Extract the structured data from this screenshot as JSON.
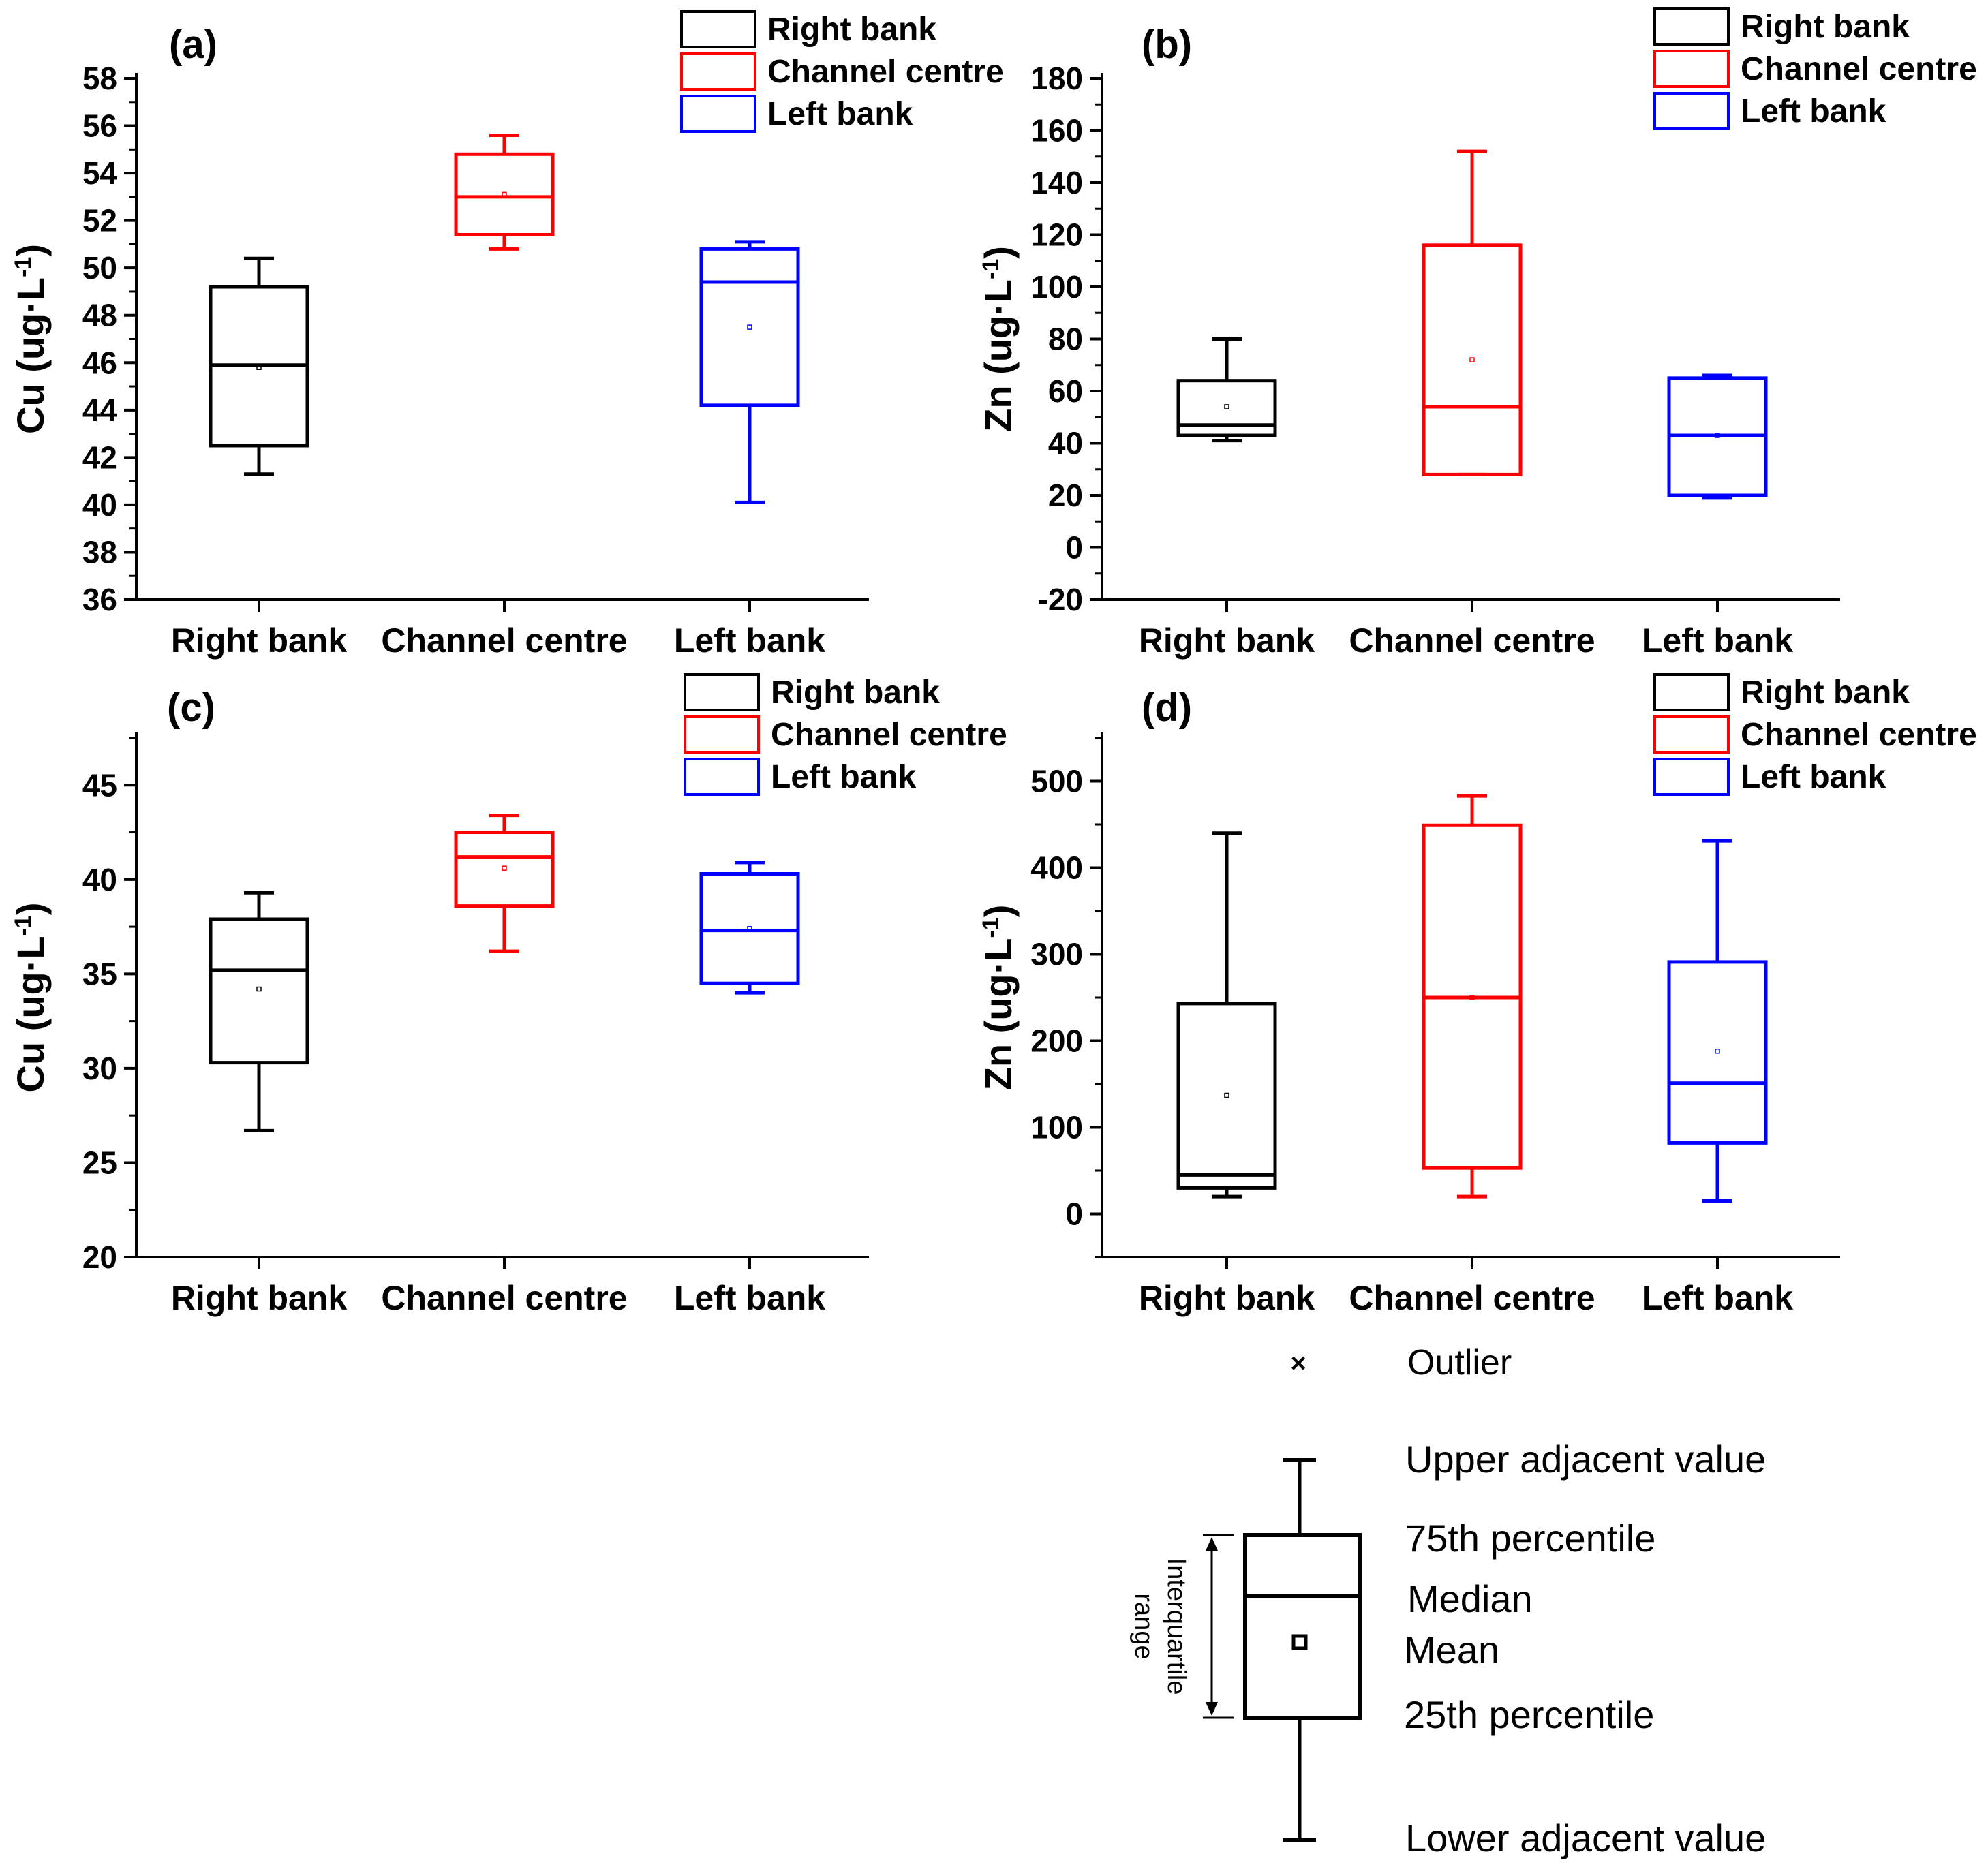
{
  "categories": [
    "Right bank",
    "Channel centre",
    "Left bank"
  ],
  "series_colors": {
    "Right bank": "#000000",
    "Channel centre": "#ff0000",
    "Left bank": "#0000ff"
  },
  "chart_data": [
    {
      "type": "box",
      "panel": "(a)",
      "ylabel": "Cu (ug·L",
      "ylabel_sup": "-1",
      "ylabel_close": ")",
      "ylim": [
        36,
        58
      ],
      "yticks": [
        36,
        38,
        40,
        42,
        44,
        46,
        48,
        50,
        52,
        54,
        56,
        58
      ],
      "ytick_labels": [
        "36",
        "38",
        "40",
        "42",
        "44",
        "46",
        "48",
        "50",
        "52",
        "54",
        "56",
        "58"
      ],
      "legend": [
        "Right bank",
        "Channel centre",
        "Left bank"
      ],
      "boxes": [
        {
          "category": "Right bank",
          "whisker_low": 41.3,
          "q1": 42.5,
          "median": 45.9,
          "q3": 49.2,
          "whisker_high": 50.4,
          "mean": 45.8
        },
        {
          "category": "Channel centre",
          "whisker_low": 50.8,
          "q1": 51.4,
          "median": 53.0,
          "q3": 54.8,
          "whisker_high": 55.6,
          "mean": 53.1
        },
        {
          "category": "Left bank",
          "whisker_low": 40.1,
          "q1": 44.2,
          "median": 49.4,
          "q3": 50.8,
          "whisker_high": 51.1,
          "mean": 47.5
        }
      ]
    },
    {
      "type": "box",
      "panel": "(b)",
      "ylabel": "Zn (ug·L",
      "ylabel_sup": "-1",
      "ylabel_close": ")",
      "ylim": [
        -20,
        180
      ],
      "yticks": [
        -20,
        0,
        20,
        40,
        60,
        80,
        100,
        120,
        140,
        160,
        180
      ],
      "ytick_labels": [
        "-20",
        "0",
        "20",
        "40",
        "60",
        "80",
        "100",
        "120",
        "140",
        "160",
        "180"
      ],
      "legend": [
        "Right bank",
        "Channel centre",
        "Left bank"
      ],
      "boxes": [
        {
          "category": "Right bank",
          "whisker_low": 41,
          "q1": 43,
          "median": 47,
          "q3": 64,
          "whisker_high": 80,
          "mean": 54
        },
        {
          "category": "Channel centre",
          "whisker_low": 28,
          "q1": 28,
          "median": 54,
          "q3": 116,
          "whisker_high": 152,
          "mean": 72
        },
        {
          "category": "Left bank",
          "whisker_low": 19,
          "q1": 20,
          "median": 43,
          "q3": 65,
          "whisker_high": 66,
          "mean": 43
        }
      ]
    },
    {
      "type": "box",
      "panel": "(c)",
      "ylabel": "Cu (ug·L",
      "ylabel_sup": "-1",
      "ylabel_close": ")",
      "ylim": [
        20,
        47.5
      ],
      "yticks": [
        20,
        25,
        30,
        35,
        40,
        45
      ],
      "ytick_labels": [
        "20",
        "25",
        "30",
        "35",
        "40",
        "45"
      ],
      "legend": [
        "Right bank",
        "Channel centre",
        "Left bank"
      ],
      "boxes": [
        {
          "category": "Right bank",
          "whisker_low": 26.7,
          "q1": 30.3,
          "median": 35.2,
          "q3": 37.9,
          "whisker_high": 39.3,
          "mean": 34.2
        },
        {
          "category": "Channel centre",
          "whisker_low": 36.2,
          "q1": 38.6,
          "median": 41.2,
          "q3": 42.5,
          "whisker_high": 43.4,
          "mean": 40.6
        },
        {
          "category": "Left bank",
          "whisker_low": 34.0,
          "q1": 34.5,
          "median": 37.3,
          "q3": 40.3,
          "whisker_high": 40.9,
          "mean": 37.4
        }
      ]
    },
    {
      "type": "box",
      "panel": "(d)",
      "ylabel": "Zn (ug·L",
      "ylabel_sup": "-1",
      "ylabel_close": ")",
      "ylim": [
        -50,
        550
      ],
      "yticks": [
        0,
        100,
        200,
        300,
        400,
        500
      ],
      "ytick_labels": [
        "0",
        "100",
        "200",
        "300",
        "400",
        "500"
      ],
      "legend": [
        "Right bank",
        "Channel centre",
        "Left bank"
      ],
      "boxes": [
        {
          "category": "Right bank",
          "whisker_low": 20,
          "q1": 30,
          "median": 45,
          "q3": 243,
          "whisker_high": 440,
          "mean": 137
        },
        {
          "category": "Channel centre",
          "whisker_low": 20,
          "q1": 53,
          "median": 250,
          "q3": 449,
          "whisker_high": 483,
          "mean": 250
        },
        {
          "category": "Left bank",
          "whisker_low": 15,
          "q1": 82,
          "median": 151,
          "q3": 291,
          "whisker_high": 431,
          "mean": 188
        }
      ]
    }
  ],
  "key": {
    "outlier_symbol": "×",
    "outlier": "Outlier",
    "upper_adjacent": "Upper adjacent value",
    "p75": "75th percentile",
    "median": "Median",
    "mean": "Mean",
    "p25": "25th percentile",
    "lower_adjacent": "Lower adjacent value",
    "iqr_line1": "Interquartile",
    "iqr_line2": "range"
  }
}
